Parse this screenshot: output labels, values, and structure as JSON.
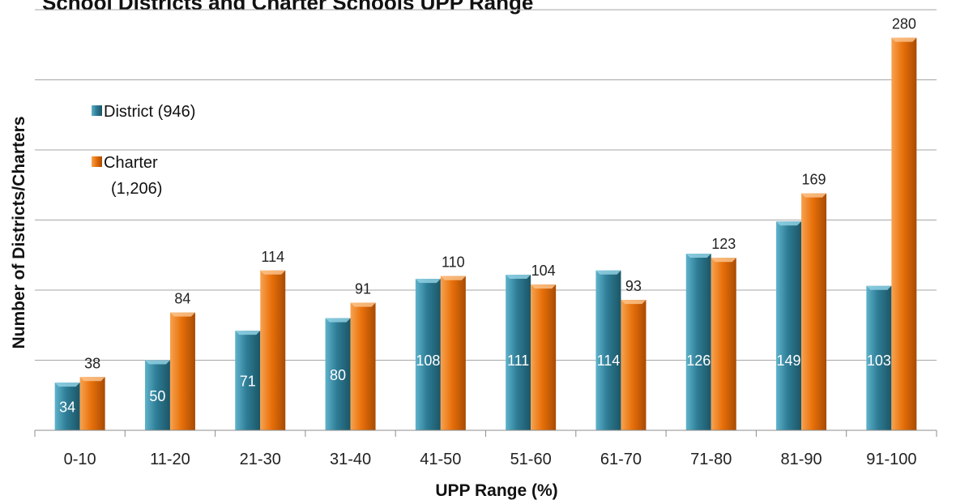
{
  "chart_data": {
    "type": "bar",
    "title": "School Districts  and Charter Schools  UPP Range",
    "xlabel": "UPP Range (%)",
    "ylabel": "Number of Districts/Charters",
    "categories": [
      "0-10",
      "11-20",
      "21-30",
      "31-40",
      "41-50",
      "51-60",
      "61-70",
      "71-80",
      "81-90",
      "91-100"
    ],
    "series": [
      {
        "name": "District (946)",
        "color": "#2e7d96",
        "label_position": "inside",
        "values": [
          34,
          50,
          71,
          80,
          108,
          111,
          114,
          126,
          149,
          103
        ]
      },
      {
        "name": "Charter (1,206)",
        "color": "#e8700a",
        "label_position": "above",
        "values": [
          38,
          84,
          114,
          91,
          110,
          104,
          93,
          123,
          169,
          280
        ]
      }
    ],
    "ylim": [
      0,
      300
    ],
    "y_gridline_step": 50,
    "grid": true,
    "y_tick_labels_shown": false,
    "legend_position": "top-left"
  }
}
